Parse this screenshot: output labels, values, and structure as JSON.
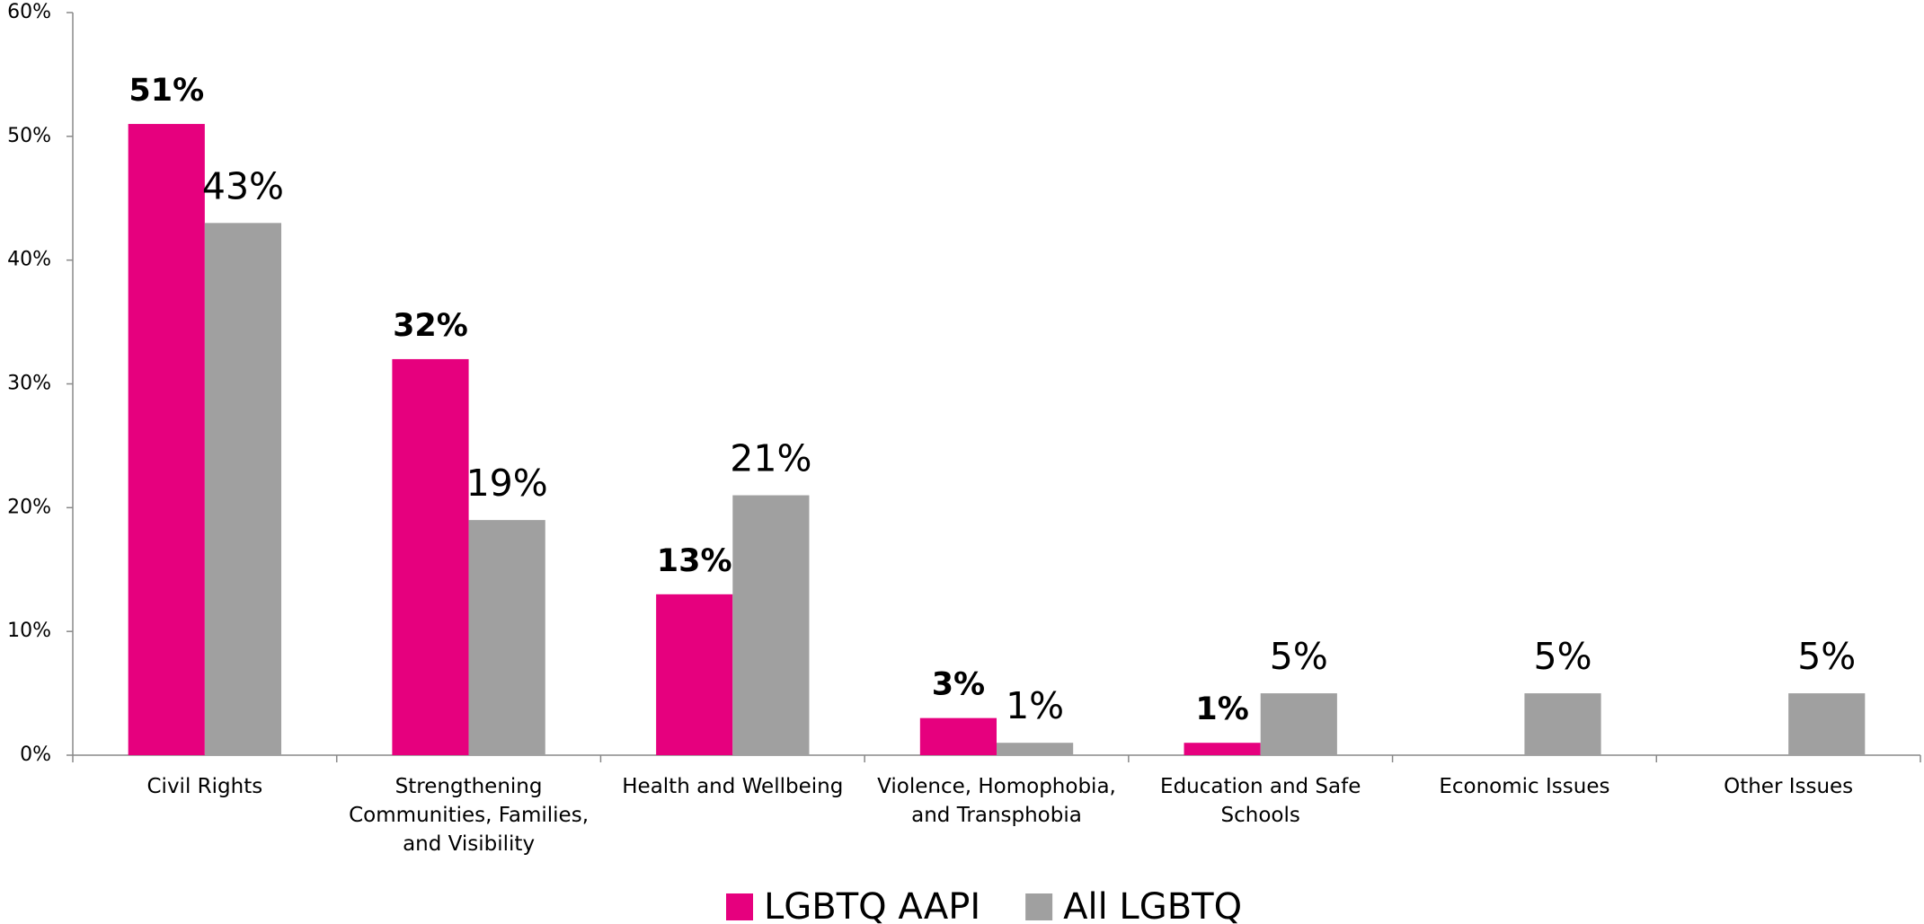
{
  "chart_data": {
    "type": "bar",
    "categories": [
      "Civil Rights",
      "Strengthening Communities, Families, and Visibility",
      "Health and Wellbeing",
      "Violence, Homophobia, and Transphobia",
      "Education and Safe Schools",
      "Economic Issues",
      "Other Issues"
    ],
    "series": [
      {
        "name": "LGBTQ AAPI",
        "color": "#e6007e",
        "values": [
          51,
          32,
          13,
          3,
          1,
          null,
          null
        ],
        "value_labels": [
          "51%",
          "32%",
          "13%",
          "3%",
          "1%",
          null,
          null
        ]
      },
      {
        "name": "All LGBTQ",
        "color": "#a0a0a0",
        "values": [
          43,
          19,
          21,
          1,
          5,
          5,
          5
        ],
        "value_labels": [
          "43%",
          "19%",
          "21%",
          "1%",
          "5%",
          "5%",
          "5%"
        ]
      }
    ],
    "ylim": [
      0,
      60
    ],
    "yticks": [
      {
        "value": 0,
        "label": "0%"
      },
      {
        "value": 10,
        "label": "10%"
      },
      {
        "value": 20,
        "label": "20%"
      },
      {
        "value": 30,
        "label": "30%"
      },
      {
        "value": 40,
        "label": "40%"
      },
      {
        "value": 50,
        "label": "50%"
      },
      {
        "value": 60,
        "label": "60%"
      }
    ],
    "grid": false,
    "legend": "bottom"
  }
}
